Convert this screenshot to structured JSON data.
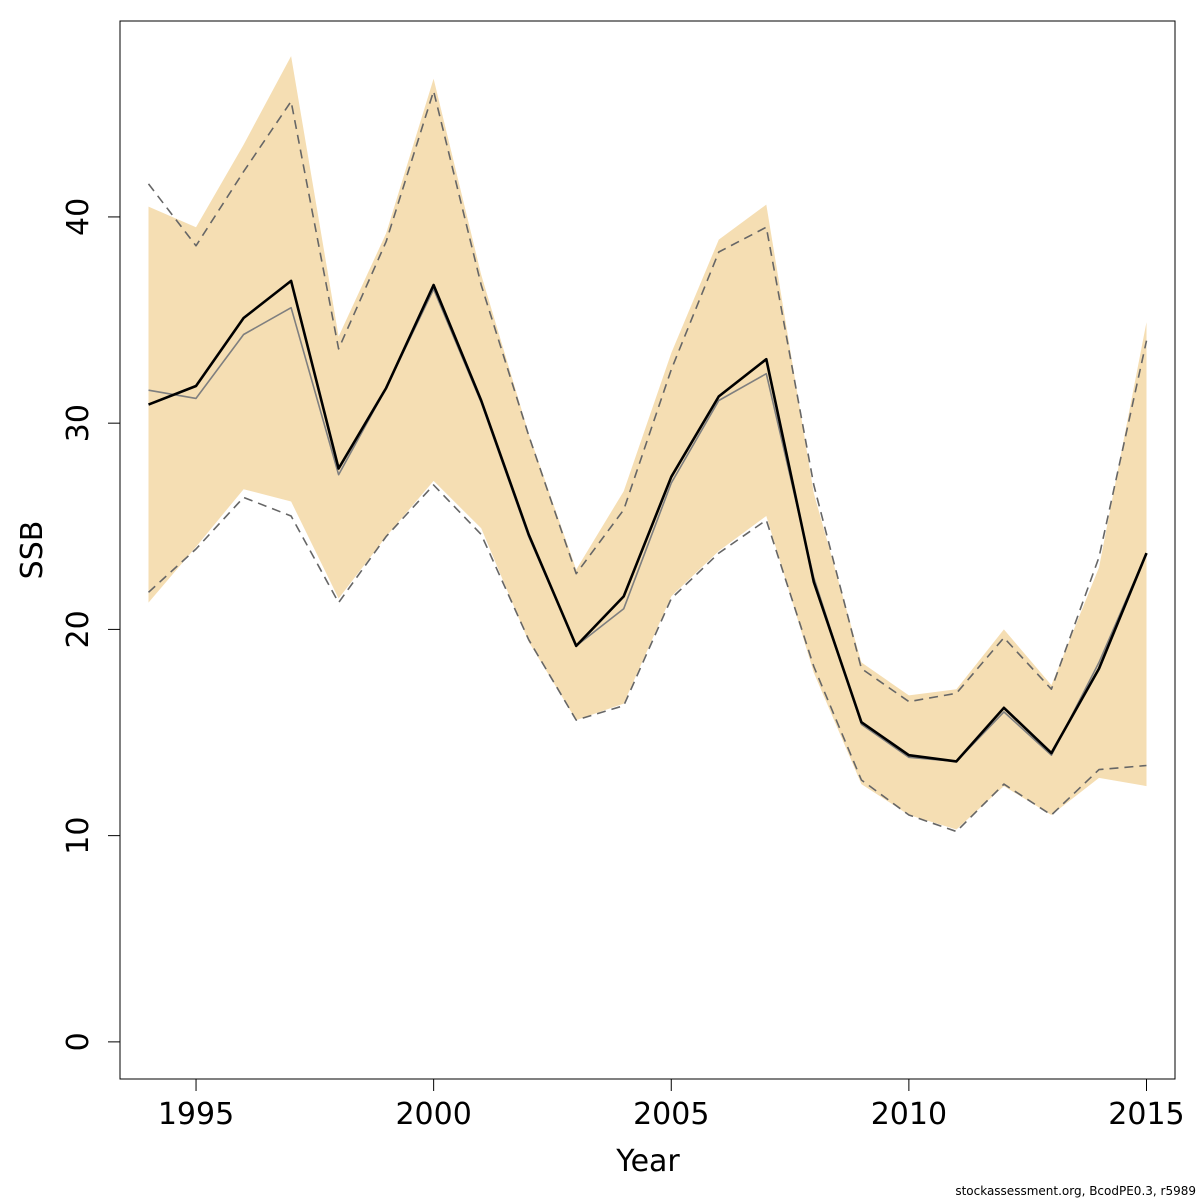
{
  "chart_data": {
    "type": "line",
    "title": "",
    "xlabel": "Year",
    "ylabel": "SSB",
    "xlim": [
      1993.4,
      2015.6
    ],
    "ylim": [
      -1.8,
      49.5
    ],
    "x_ticks": [
      1995,
      2000,
      2005,
      2010,
      2015
    ],
    "y_ticks": [
      0,
      10,
      20,
      30,
      40
    ],
    "grid": false,
    "legend": "none",
    "x": [
      1994,
      1995,
      1996,
      1997,
      1998,
      1999,
      2000,
      2001,
      2002,
      2003,
      2004,
      2005,
      2006,
      2007,
      2008,
      2009,
      2010,
      2011,
      2012,
      2013,
      2014,
      2015
    ],
    "band": {
      "upper": [
        40.5,
        39.5,
        43.5,
        47.8,
        34.2,
        39.2,
        46.7,
        37.2,
        29.5,
        22.9,
        26.7,
        33.4,
        38.9,
        40.6,
        26.6,
        18.4,
        16.8,
        17.1,
        20.0,
        17.3,
        23.0,
        34.9
      ],
      "lower": [
        21.3,
        24.0,
        26.8,
        26.2,
        21.5,
        24.5,
        27.2,
        24.9,
        19.4,
        15.6,
        16.4,
        21.6,
        23.8,
        25.5,
        17.9,
        12.5,
        11.0,
        10.3,
        12.4,
        11.0,
        12.8,
        12.4
      ],
      "color": "#f5deb3"
    },
    "series": [
      {
        "values": [
          30.9,
          31.8,
          35.1,
          36.9,
          27.8,
          31.7,
          36.7,
          31.1,
          24.6,
          19.2,
          21.6,
          27.4,
          31.3,
          33.1,
          22.3,
          15.5,
          13.9,
          13.6,
          16.2,
          14.0,
          18.1,
          23.7
        ],
        "color": "#000000",
        "dash": "solid",
        "width": 2.6
      },
      {
        "values": [
          31.6,
          31.2,
          34.3,
          35.6,
          27.5,
          31.7,
          36.5,
          31.0,
          24.5,
          19.2,
          21.0,
          27.1,
          31.1,
          32.4,
          22.5,
          15.4,
          13.8,
          13.6,
          16.0,
          13.9,
          18.4,
          23.7
        ],
        "color": "#7f7f7f",
        "dash": "solid",
        "width": 1.6
      },
      {
        "values": [
          41.6,
          38.6,
          42.2,
          45.6,
          33.6,
          38.8,
          46.1,
          36.7,
          29.4,
          22.7,
          25.8,
          32.6,
          38.3,
          39.5,
          27.0,
          18.1,
          16.5,
          16.9,
          19.6,
          17.1,
          23.5,
          34.0
        ],
        "color": "#666666",
        "dash": "dashed",
        "width": 1.6
      },
      {
        "values": [
          21.8,
          23.9,
          26.4,
          25.5,
          21.3,
          24.5,
          27.0,
          24.6,
          19.5,
          15.6,
          16.3,
          21.5,
          23.7,
          25.3,
          18.2,
          12.7,
          11.0,
          10.2,
          12.5,
          11.0,
          13.2,
          13.4
        ],
        "color": "#666666",
        "dash": "dashed",
        "width": 1.6
      }
    ]
  },
  "footer": "stockassessment.org, BcodPE0.3, r5989"
}
